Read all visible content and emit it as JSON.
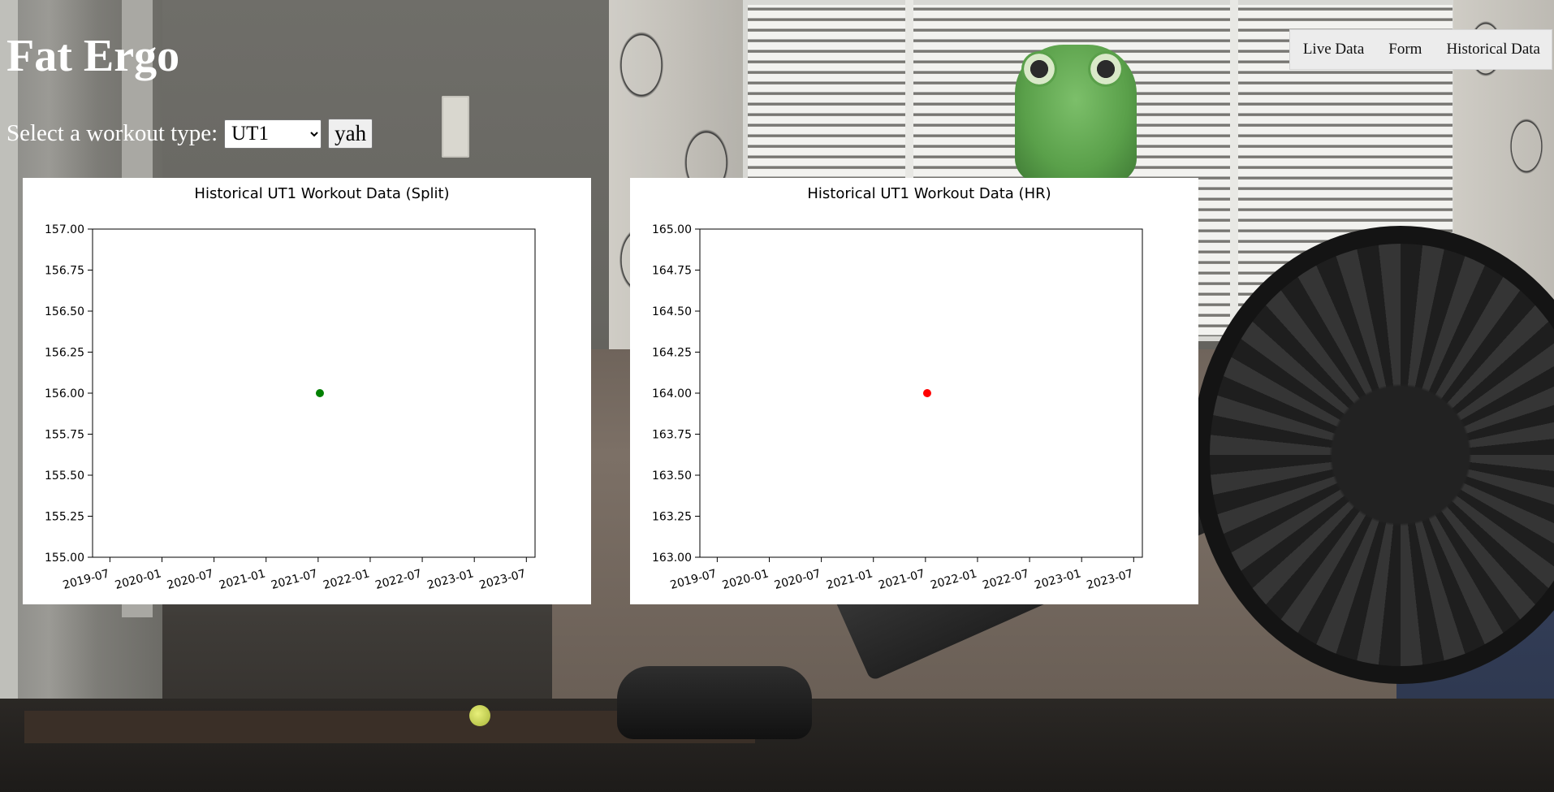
{
  "header": {
    "title": "Fat Ergo"
  },
  "nav": {
    "items": [
      {
        "id": "live-data",
        "label": "Live Data"
      },
      {
        "id": "form",
        "label": "Form"
      },
      {
        "id": "historical-data",
        "label": "Historical Data"
      }
    ]
  },
  "controls": {
    "workout_label": "Select a workout type:",
    "workout_selected": "UT1",
    "submit_label": "yah"
  },
  "chart_data": [
    {
      "type": "scatter",
      "title": "Historical UT1 Workout Data (Split)",
      "xlabel": "",
      "ylabel": "",
      "x_ticks": [
        "2019-07",
        "2020-01",
        "2020-07",
        "2021-01",
        "2021-07",
        "2022-01",
        "2022-07",
        "2023-01",
        "2023-07"
      ],
      "xlim": [
        "2019-05",
        "2023-08"
      ],
      "ylim": [
        155.0,
        157.0
      ],
      "y_ticks": [
        "155.00",
        "155.25",
        "155.50",
        "155.75",
        "156.00",
        "156.25",
        "156.50",
        "156.75",
        "157.00"
      ],
      "series": [
        {
          "color": "#008000",
          "points": [
            {
              "x": "2021-07-07",
              "y": 156.0
            }
          ]
        }
      ],
      "grid": false
    },
    {
      "type": "scatter",
      "title": "Historical UT1 Workout Data (HR)",
      "xlabel": "",
      "ylabel": "",
      "x_ticks": [
        "2019-07",
        "2020-01",
        "2020-07",
        "2021-01",
        "2021-07",
        "2022-01",
        "2022-07",
        "2023-01",
        "2023-07"
      ],
      "xlim": [
        "2019-05",
        "2023-08"
      ],
      "ylim": [
        163.0,
        165.0
      ],
      "y_ticks": [
        "163.00",
        "163.25",
        "163.50",
        "163.75",
        "164.00",
        "164.25",
        "164.50",
        "164.75",
        "165.00"
      ],
      "series": [
        {
          "color": "#ff0000",
          "points": [
            {
              "x": "2021-07-07",
              "y": 164.0
            }
          ]
        }
      ],
      "grid": false
    }
  ]
}
